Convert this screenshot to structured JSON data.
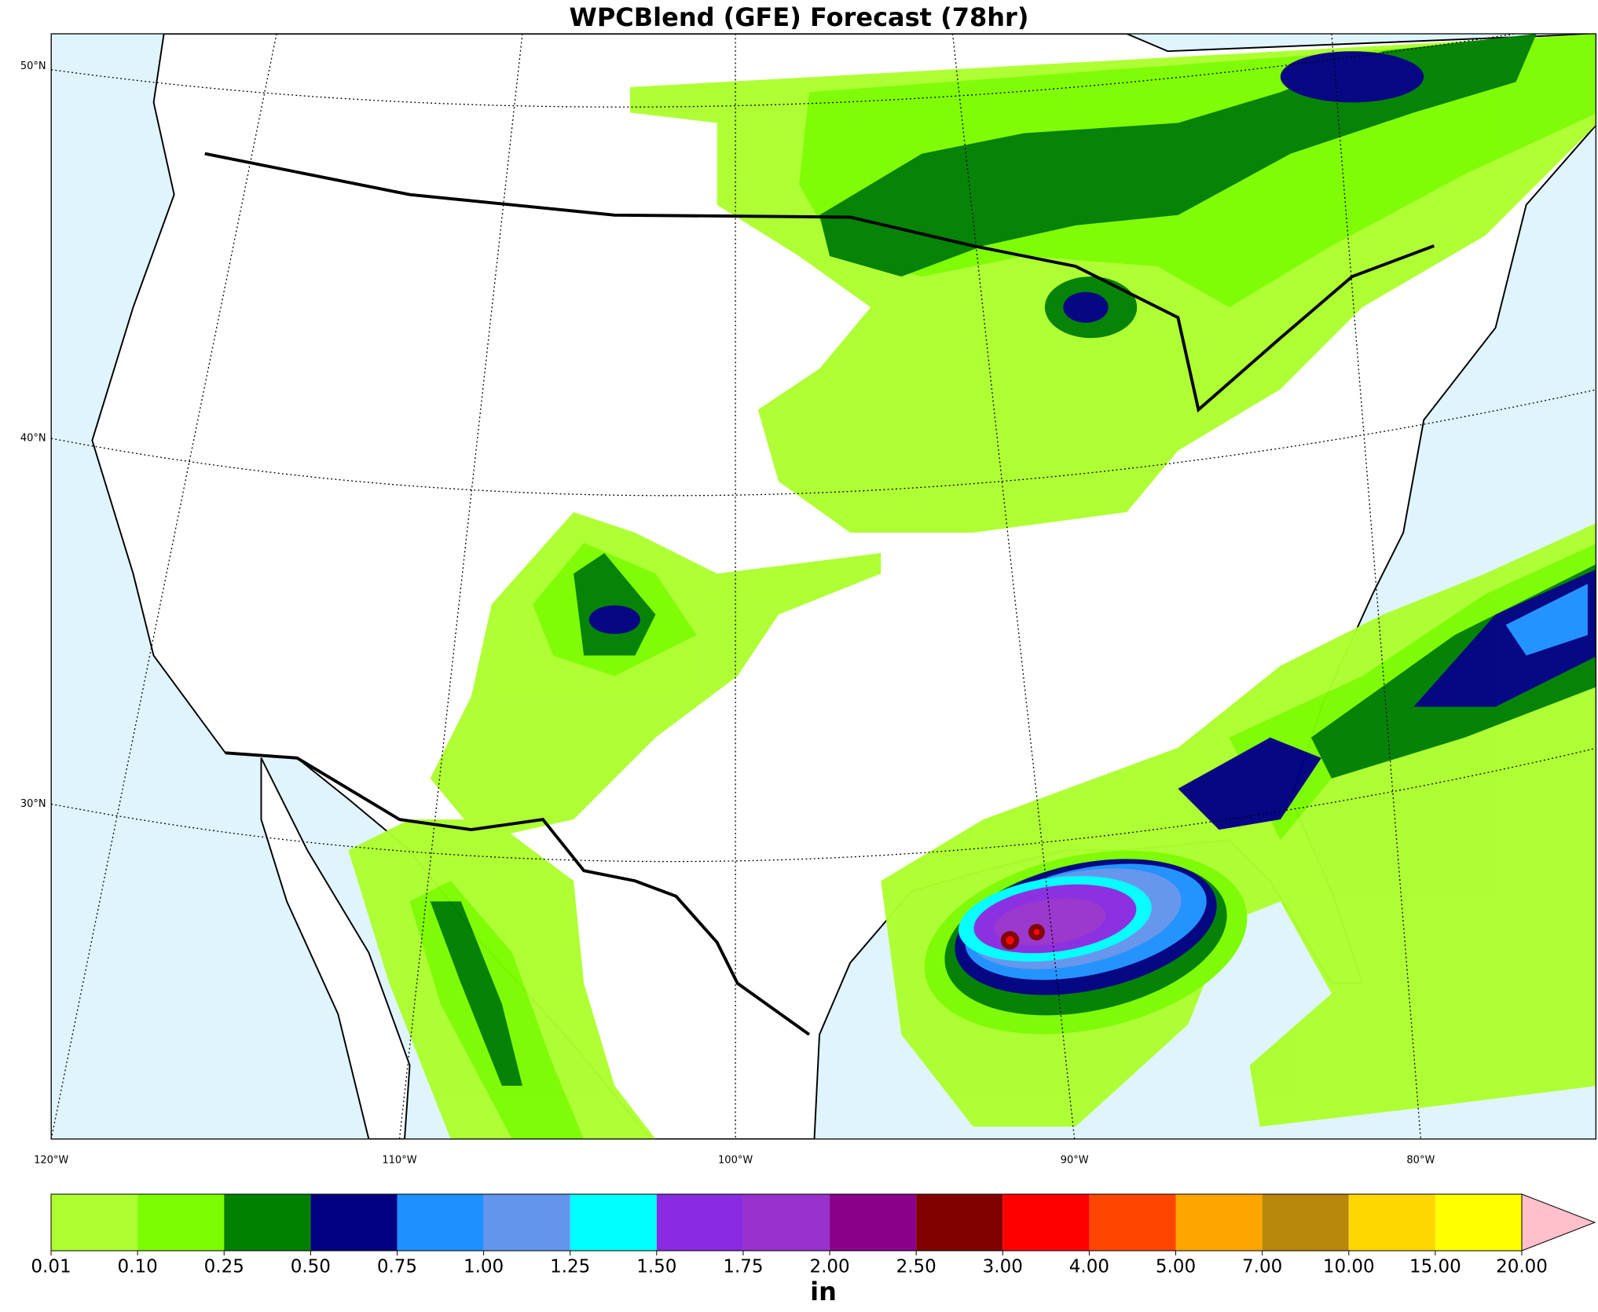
{
  "title": "WPCBlend (GFE) Forecast (78hr)",
  "map": {
    "lat_labels": [
      "50°N",
      "40°N",
      "30°N"
    ],
    "lon_labels": [
      "120°W",
      "110°W",
      "100°W",
      "90°W",
      "80°W"
    ]
  },
  "colorbar": {
    "levels": [
      {
        "value": 0.01,
        "label": "0.01"
      },
      {
        "value": 0.1,
        "label": "0.10"
      },
      {
        "value": 0.25,
        "label": "0.25"
      },
      {
        "value": 0.5,
        "label": "0.50"
      },
      {
        "value": 0.75,
        "label": "0.75"
      },
      {
        "value": 1,
        "label": "1.00"
      },
      {
        "value": 1.25,
        "label": "1.25"
      },
      {
        "value": 1.5,
        "label": "1.50"
      },
      {
        "value": 1.75,
        "label": "1.75"
      },
      {
        "value": 2,
        "label": "2.00"
      },
      {
        "value": 2.5,
        "label": "2.50"
      },
      {
        "value": 3,
        "label": "3.00"
      },
      {
        "value": 4,
        "label": "4.00"
      },
      {
        "value": 5,
        "label": "5.00"
      },
      {
        "value": 7,
        "label": "7.00"
      },
      {
        "value": 10,
        "label": "10.00"
      },
      {
        "value": 15,
        "label": "15.00"
      },
      {
        "value": 20,
        "label": "20.00"
      }
    ],
    "colors": [
      "#adff2f",
      "#7cfc00",
      "#008000",
      "#000080",
      "#1e90ff",
      "#6495ed",
      "#00ffff",
      "#8a2be2",
      "#9932cc",
      "#8b008b",
      "#800000",
      "#ff0000",
      "#ff4500",
      "#ffa500",
      "#b8860b",
      "#ffd700",
      "#ffff00"
    ],
    "extend_color": "#ffc0cb",
    "unit": "in"
  }
}
